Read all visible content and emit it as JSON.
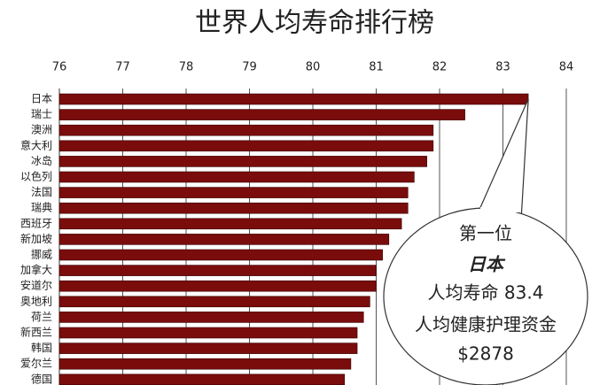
{
  "chart_data": {
    "type": "bar",
    "title": "世界人均寿命排行榜",
    "categories": [
      "日本",
      "瑞士",
      "澳洲",
      "意大利",
      "冰岛",
      "以色列",
      "法国",
      "瑞典",
      "西班牙",
      "新加坡",
      "挪威",
      "加拿大",
      "安道尔",
      "奥地利",
      "荷兰",
      "新西兰",
      "韩国",
      "爱尔兰",
      "德国"
    ],
    "values": [
      83.4,
      82.4,
      81.9,
      81.9,
      81.8,
      81.6,
      81.5,
      81.5,
      81.4,
      81.2,
      81.1,
      81.0,
      81.0,
      80.9,
      80.8,
      80.7,
      80.7,
      80.6,
      80.5
    ],
    "color": "#7a0c0c",
    "xlim": [
      76,
      84
    ],
    "xticks": [
      76,
      77,
      78,
      79,
      80,
      81,
      82,
      83,
      84
    ],
    "grid": true,
    "annotation": [
      "第一位",
      "日本",
      "人均寿命 83.4",
      "人均健康护理资金",
      "$2878"
    ]
  }
}
